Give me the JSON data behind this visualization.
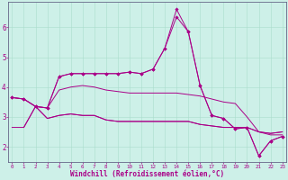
{
  "background_color": "#cdf0e8",
  "grid_color": "#aaddcc",
  "line_color": "#aa0088",
  "xlim": [
    -0.3,
    23.3
  ],
  "ylim": [
    1.5,
    6.85
  ],
  "xlabel": "Windchill (Refroidissement éolien,°C)",
  "xlabel_fontsize": 5.5,
  "yticks": [
    2,
    3,
    4,
    5,
    6
  ],
  "xticks": [
    0,
    1,
    2,
    3,
    4,
    5,
    6,
    7,
    8,
    9,
    10,
    11,
    12,
    13,
    14,
    15,
    16,
    17,
    18,
    19,
    20,
    21,
    22,
    23
  ],
  "curve1_x": [
    0,
    1,
    2,
    3,
    4,
    5,
    6,
    7,
    8,
    9,
    10,
    11,
    12,
    13,
    14,
    15,
    16,
    17,
    18,
    19,
    20,
    21,
    22,
    23
  ],
  "curve1_y": [
    3.65,
    3.6,
    3.35,
    3.3,
    4.35,
    4.45,
    4.45,
    4.45,
    4.45,
    4.45,
    4.5,
    4.45,
    4.6,
    5.3,
    6.35,
    5.85,
    4.05,
    3.05,
    2.95,
    2.6,
    2.65,
    1.7,
    2.2,
    2.35
  ],
  "curve2_x": [
    0,
    1,
    2,
    3,
    4,
    5,
    6,
    7,
    8,
    9,
    10,
    11,
    12,
    13,
    14,
    15,
    16,
    17,
    18,
    19,
    20,
    21,
    22,
    23
  ],
  "curve2_y": [
    3.65,
    3.6,
    3.35,
    3.3,
    4.35,
    4.45,
    4.45,
    4.45,
    4.45,
    4.45,
    4.5,
    4.45,
    4.6,
    5.3,
    6.6,
    5.85,
    4.05,
    3.05,
    2.95,
    2.6,
    2.65,
    1.7,
    2.2,
    2.35
  ],
  "curve3_x": [
    1,
    2,
    3,
    4,
    5,
    6,
    7,
    8,
    9,
    10,
    11,
    12,
    13,
    14,
    15,
    16,
    17,
    18,
    19,
    20,
    21,
    22,
    23
  ],
  "curve3_y": [
    2.65,
    3.35,
    2.95,
    3.05,
    3.1,
    3.05,
    3.05,
    2.9,
    2.85,
    2.85,
    2.85,
    2.85,
    2.85,
    2.85,
    2.85,
    2.75,
    2.7,
    2.65,
    2.65,
    2.65,
    2.5,
    2.45,
    2.5
  ],
  "curve4_x": [
    0,
    1,
    2,
    3,
    4,
    5,
    6,
    7,
    8,
    9,
    10,
    11,
    12,
    13,
    14,
    15,
    16,
    17,
    18,
    19,
    20,
    21,
    22,
    23
  ],
  "curve4_y": [
    2.65,
    2.65,
    3.35,
    2.95,
    3.05,
    3.1,
    3.05,
    3.05,
    2.9,
    2.85,
    2.85,
    2.85,
    2.85,
    2.85,
    2.85,
    2.85,
    2.75,
    2.7,
    2.65,
    2.65,
    2.65,
    2.5,
    2.45,
    2.5
  ],
  "curve5_x": [
    0,
    1,
    2,
    3,
    4,
    5,
    6,
    7,
    8,
    9,
    10,
    11,
    12,
    13,
    14,
    15,
    16,
    17,
    18,
    19,
    20,
    21,
    22,
    23
  ],
  "curve5_y": [
    3.65,
    3.6,
    3.35,
    3.3,
    3.9,
    4.0,
    4.05,
    4.0,
    3.9,
    3.85,
    3.8,
    3.8,
    3.8,
    3.8,
    3.8,
    3.75,
    3.7,
    3.6,
    3.5,
    3.45,
    3.0,
    2.5,
    2.4,
    2.4
  ]
}
